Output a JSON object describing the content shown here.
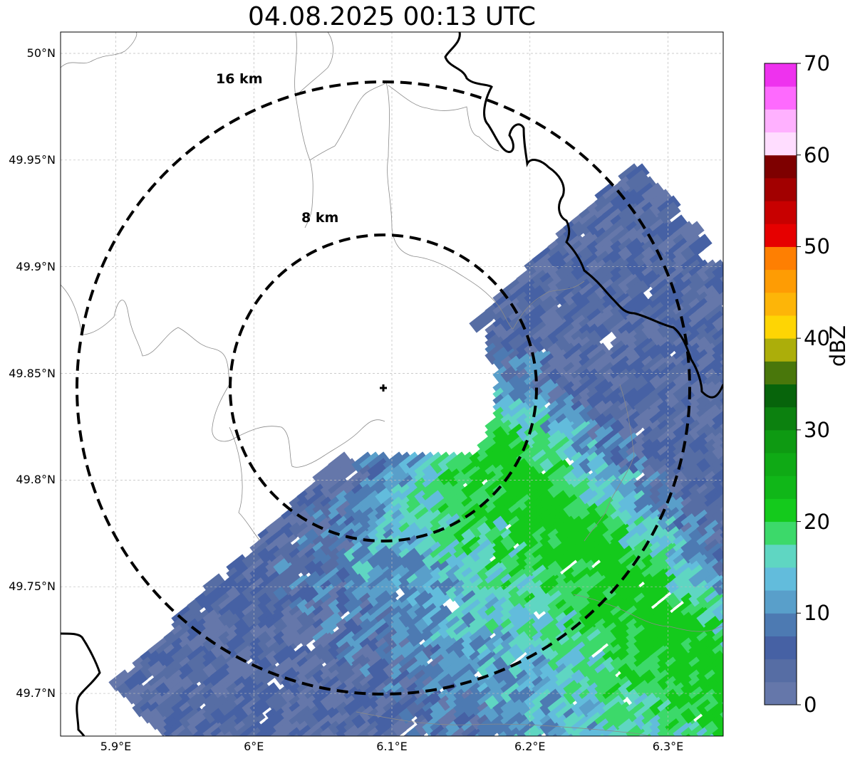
{
  "title": "04.08.2025 00:13 UTC",
  "map": {
    "lon_range": [
      5.86,
      6.34
    ],
    "lat_range": [
      49.68,
      50.01
    ],
    "radar_site": {
      "lon": 6.095,
      "lat": 49.843
    },
    "gridlines": true,
    "lat_ticks": [
      {
        "value": 50.0,
        "label": "50°N"
      },
      {
        "value": 49.95,
        "label": "49.95°N"
      },
      {
        "value": 49.9,
        "label": "49.9°N"
      },
      {
        "value": 49.85,
        "label": "49.85°N"
      },
      {
        "value": 49.8,
        "label": "49.8°N"
      },
      {
        "value": 49.75,
        "label": "49.75°N"
      },
      {
        "value": 49.7,
        "label": "49.7°N"
      }
    ],
    "lon_ticks": [
      {
        "value": 5.9,
        "label": "5.9°E"
      },
      {
        "value": 6.0,
        "label": "6°E"
      },
      {
        "value": 6.1,
        "label": "6.1°E"
      },
      {
        "value": 6.2,
        "label": "6.2°E"
      },
      {
        "value": 6.3,
        "label": "6.3°E"
      }
    ],
    "range_rings": [
      {
        "radius_km": 8,
        "label": "8 km"
      },
      {
        "radius_km": 16,
        "label": "16 km"
      }
    ]
  },
  "colorbar": {
    "label": "dBZ",
    "min": 0,
    "max": 70,
    "ticks": [
      "0",
      "10",
      "20",
      "30",
      "40",
      "50",
      "60",
      "70"
    ],
    "colors": [
      "#6577aa",
      "#566da4",
      "#4661a4",
      "#4d7ab2",
      "#599fca",
      "#62bcdc",
      "#5fd6c2",
      "#3cd96a",
      "#14ca1c",
      "#10b718",
      "#0faa15",
      "#0e9a12",
      "#0c810f",
      "#07640b",
      "#49770b",
      "#acae0a",
      "#fed504",
      "#fdb508",
      "#fe9c04",
      "#fe7f02",
      "#e60000",
      "#c80000",
      "#a20000",
      "#7e0000",
      "#ffddff",
      "#ffb1ff",
      "#fe6afe",
      "#ee32ee"
    ]
  }
}
